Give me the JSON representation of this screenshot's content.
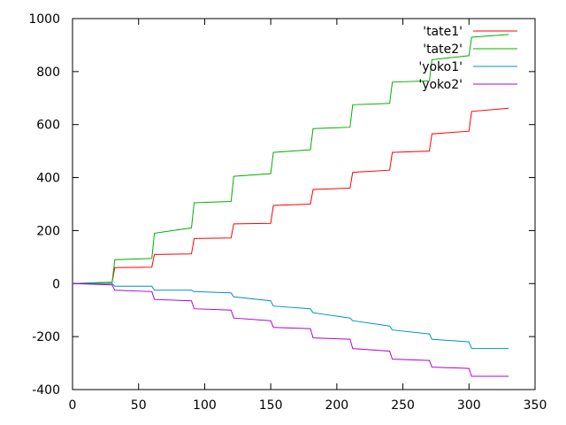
{
  "chart_data": {
    "type": "line",
    "title": "",
    "xlabel": "",
    "ylabel": "",
    "xlim": [
      0,
      350
    ],
    "ylim": [
      -400,
      1000
    ],
    "x_ticks": [
      0,
      50,
      100,
      150,
      200,
      250,
      300,
      350
    ],
    "y_ticks": [
      -400,
      -200,
      0,
      200,
      400,
      600,
      800,
      1000
    ],
    "x_tick_labels": [
      "0",
      "50",
      "100",
      "150",
      "200",
      "250",
      "300",
      "350"
    ],
    "y_tick_labels": [
      "-400",
      "-200",
      "0",
      "200",
      "400",
      "600",
      "800",
      "1000"
    ],
    "grid": false,
    "legend_position": "top-right",
    "series": [
      {
        "name": "'tate1'",
        "color": "#ff0000",
        "points": [
          [
            0,
            0
          ],
          [
            30,
            5
          ],
          [
            32,
            60
          ],
          [
            60,
            62
          ],
          [
            62,
            110
          ],
          [
            90,
            112
          ],
          [
            92,
            170
          ],
          [
            120,
            172
          ],
          [
            122,
            225
          ],
          [
            150,
            227
          ],
          [
            152,
            295
          ],
          [
            180,
            300
          ],
          [
            182,
            355
          ],
          [
            210,
            360
          ],
          [
            212,
            420
          ],
          [
            240,
            428
          ],
          [
            242,
            495
          ],
          [
            270,
            500
          ],
          [
            272,
            565
          ],
          [
            300,
            575
          ],
          [
            302,
            650
          ],
          [
            330,
            662
          ]
        ]
      },
      {
        "name": "'tate2'",
        "color": "#00b000",
        "points": [
          [
            0,
            0
          ],
          [
            30,
            5
          ],
          [
            32,
            90
          ],
          [
            60,
            95
          ],
          [
            62,
            190
          ],
          [
            90,
            210
          ],
          [
            92,
            305
          ],
          [
            120,
            310
          ],
          [
            122,
            405
          ],
          [
            150,
            415
          ],
          [
            152,
            495
          ],
          [
            180,
            505
          ],
          [
            182,
            585
          ],
          [
            210,
            590
          ],
          [
            212,
            675
          ],
          [
            240,
            680
          ],
          [
            242,
            760
          ],
          [
            270,
            765
          ],
          [
            272,
            845
          ],
          [
            300,
            860
          ],
          [
            302,
            930
          ],
          [
            330,
            940
          ]
        ]
      },
      {
        "name": "'yoko1'",
        "color": "#0090d0",
        "points": [
          [
            0,
            0
          ],
          [
            30,
            0
          ],
          [
            32,
            -10
          ],
          [
            60,
            -10
          ],
          [
            62,
            -25
          ],
          [
            90,
            -25
          ],
          [
            92,
            -30
          ],
          [
            120,
            -35
          ],
          [
            122,
            -50
          ],
          [
            150,
            -65
          ],
          [
            152,
            -85
          ],
          [
            180,
            -95
          ],
          [
            182,
            -110
          ],
          [
            210,
            -130
          ],
          [
            212,
            -140
          ],
          [
            240,
            -160
          ],
          [
            242,
            -175
          ],
          [
            270,
            -190
          ],
          [
            272,
            -210
          ],
          [
            300,
            -220
          ],
          [
            302,
            -245
          ],
          [
            330,
            -245
          ]
        ]
      },
      {
        "name": "'yoko2'",
        "color": "#b000e0",
        "points": [
          [
            0,
            0
          ],
          [
            30,
            -5
          ],
          [
            32,
            -25
          ],
          [
            60,
            -30
          ],
          [
            62,
            -60
          ],
          [
            90,
            -65
          ],
          [
            92,
            -95
          ],
          [
            120,
            -100
          ],
          [
            122,
            -130
          ],
          [
            150,
            -140
          ],
          [
            152,
            -165
          ],
          [
            180,
            -170
          ],
          [
            182,
            -205
          ],
          [
            210,
            -210
          ],
          [
            212,
            -245
          ],
          [
            240,
            -255
          ],
          [
            242,
            -285
          ],
          [
            270,
            -290
          ],
          [
            272,
            -315
          ],
          [
            300,
            -320
          ],
          [
            302,
            -350
          ],
          [
            330,
            -350
          ]
        ]
      }
    ]
  }
}
